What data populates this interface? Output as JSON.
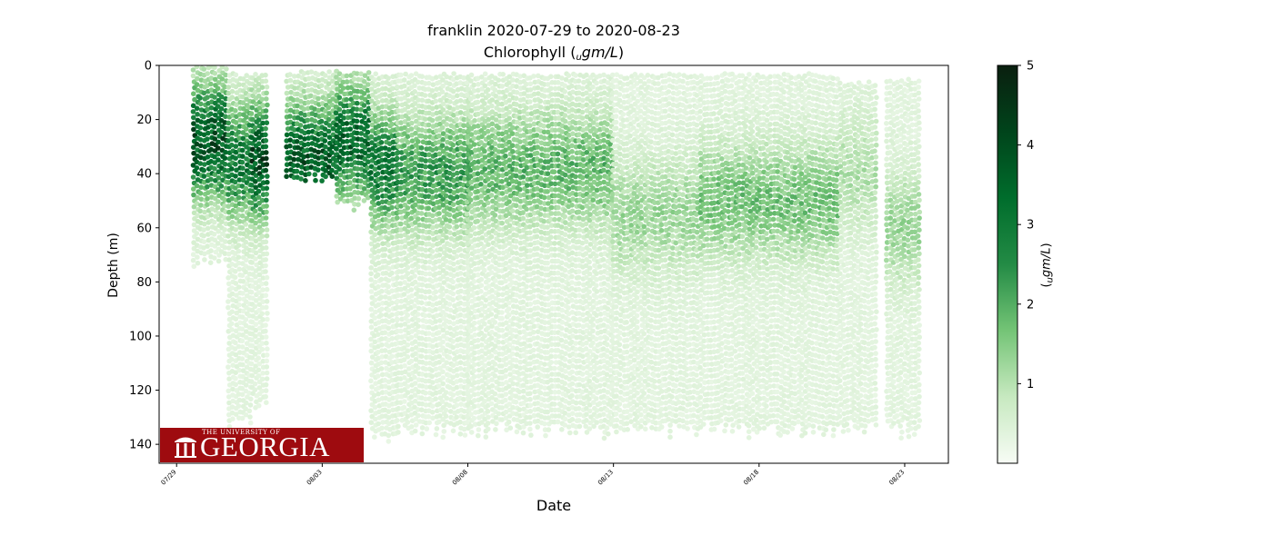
{
  "chart_data": {
    "type": "heatmap",
    "title_line1": "franklin 2020-07-29 to 2020-08-23",
    "title_line2_main": "Chlorophyll (",
    "title_line2_sub": "u",
    "title_line2_unit": "gm/L",
    "title_line2_close": ")",
    "xlabel": "Date",
    "ylabel": "Depth (m)",
    "colorbar_label_sub": "u",
    "colorbar_label_unit": "gm/L",
    "x_range_days": [
      -0.6,
      26.5
    ],
    "x_ticks": [
      {
        "day": 0,
        "label": "07/29"
      },
      {
        "day": 5,
        "label": "08/03"
      },
      {
        "day": 10,
        "label": "08/08"
      },
      {
        "day": 15,
        "label": "08/13"
      },
      {
        "day": 20,
        "label": "08/18"
      },
      {
        "day": 25,
        "label": "08/23"
      }
    ],
    "y_range": [
      147,
      0
    ],
    "y_ticks": [
      0,
      20,
      40,
      60,
      80,
      100,
      120,
      140
    ],
    "colorbar_range": [
      0,
      5
    ],
    "colorbar_ticks": [
      1,
      2,
      3,
      4,
      5
    ],
    "colormap": [
      "#f7fcf5",
      "#c7e9c0",
      "#74c476",
      "#238b45",
      "#006d2c",
      "#00441b",
      "#0a1f0f"
    ],
    "profiles": [
      {
        "start": 0.6,
        "end": 1.8,
        "min_depth": 0,
        "max_depth": 75,
        "peak_depth": 28,
        "peak_value": 3.4
      },
      {
        "start": 1.8,
        "end": 2.6,
        "min_depth": 3,
        "max_depth": 135,
        "peak_depth": 35,
        "peak_value": 2.6
      },
      {
        "start": 2.6,
        "end": 3.2,
        "min_depth": 3,
        "max_depth": 128,
        "peak_depth": 35,
        "peak_value": 3.6
      },
      {
        "start": 3.8,
        "end": 5.5,
        "min_depth": 2,
        "max_depth": 45,
        "peak_depth": 35,
        "peak_value": 3.2
      },
      {
        "start": 5.5,
        "end": 6.7,
        "min_depth": 2,
        "max_depth": 55,
        "peak_depth": 28,
        "peak_value": 3.0
      },
      {
        "start": 6.7,
        "end": 7.6,
        "min_depth": 3,
        "max_depth": 140,
        "peak_depth": 38,
        "peak_value": 2.6
      },
      {
        "start": 7.6,
        "end": 10.0,
        "min_depth": 3,
        "max_depth": 138,
        "peak_depth": 40,
        "peak_value": 1.9
      },
      {
        "start": 10.0,
        "end": 15.0,
        "min_depth": 3,
        "max_depth": 138,
        "peak_depth": 38,
        "peak_value": 1.5
      },
      {
        "start": 15.0,
        "end": 18.0,
        "min_depth": 3,
        "max_depth": 138,
        "peak_depth": 55,
        "peak_value": 0.9
      },
      {
        "start": 18.0,
        "end": 22.8,
        "min_depth": 3,
        "max_depth": 138,
        "peak_depth": 50,
        "peak_value": 1.3
      },
      {
        "start": 22.8,
        "end": 24.1,
        "min_depth": 6,
        "max_depth": 137,
        "peak_depth": 40,
        "peak_value": 0.7
      },
      {
        "start": 24.4,
        "end": 25.5,
        "min_depth": 5,
        "max_depth": 138,
        "peak_depth": 60,
        "peak_value": 0.9
      }
    ]
  },
  "logo": {
    "small_text": "THE UNIVERSITY OF",
    "big_text": "GEORGIA",
    "color": "#9e0b0f"
  }
}
